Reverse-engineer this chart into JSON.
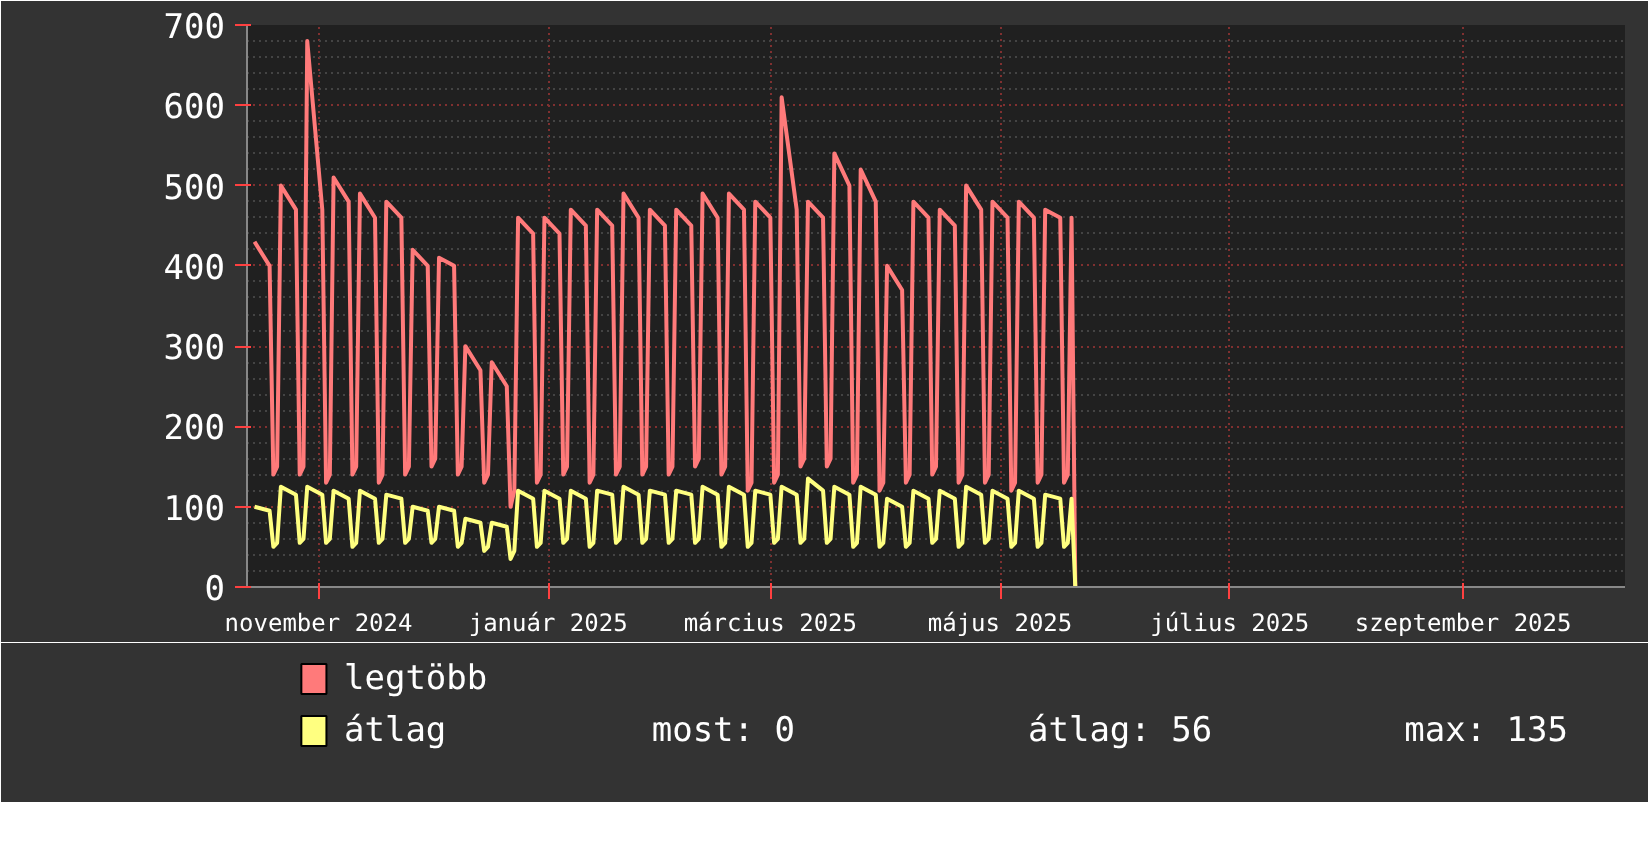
{
  "chart_data": {
    "type": "line",
    "x": [
      "2024-10-15",
      "2024-10-19",
      "2024-10-20",
      "2024-10-21",
      "2024-10-22",
      "2024-10-26",
      "2024-10-27",
      "2024-10-28",
      "2024-10-29",
      "2024-11-02",
      "2024-11-03",
      "2024-11-04",
      "2024-11-05",
      "2024-11-09",
      "2024-11-10",
      "2024-11-11",
      "2024-11-12",
      "2024-11-16",
      "2024-11-17",
      "2024-11-18",
      "2024-11-19",
      "2024-11-23",
      "2024-11-24",
      "2024-11-25",
      "2024-11-26",
      "2024-11-30",
      "2024-12-01",
      "2024-12-02",
      "2024-12-03",
      "2024-12-07",
      "2024-12-08",
      "2024-12-09",
      "2024-12-10",
      "2024-12-14",
      "2024-12-15",
      "2024-12-16",
      "2024-12-17",
      "2024-12-21",
      "2024-12-22",
      "2024-12-23",
      "2024-12-24",
      "2024-12-28",
      "2024-12-29",
      "2024-12-30",
      "2024-12-31",
      "2025-01-04",
      "2025-01-05",
      "2025-01-06",
      "2025-01-07",
      "2025-01-11",
      "2025-01-12",
      "2025-01-13",
      "2025-01-14",
      "2025-01-18",
      "2025-01-19",
      "2025-01-20",
      "2025-01-21",
      "2025-01-25",
      "2025-01-26",
      "2025-01-27",
      "2025-01-28",
      "2025-02-01",
      "2025-02-02",
      "2025-02-03",
      "2025-02-04",
      "2025-02-08",
      "2025-02-09",
      "2025-02-10",
      "2025-02-11",
      "2025-02-15",
      "2025-02-16",
      "2025-02-17",
      "2025-02-18",
      "2025-02-22",
      "2025-02-23",
      "2025-02-24",
      "2025-02-25",
      "2025-03-01",
      "2025-03-02",
      "2025-03-03",
      "2025-03-04",
      "2025-03-08",
      "2025-03-09",
      "2025-03-10",
      "2025-03-11",
      "2025-03-15",
      "2025-03-16",
      "2025-03-17",
      "2025-03-18",
      "2025-03-22",
      "2025-03-23",
      "2025-03-24",
      "2025-03-25",
      "2025-03-29",
      "2025-03-30",
      "2025-03-31",
      "2025-04-01",
      "2025-04-05",
      "2025-04-06",
      "2025-04-07",
      "2025-04-08",
      "2025-04-12",
      "2025-04-13",
      "2025-04-14",
      "2025-04-15",
      "2025-04-19",
      "2025-04-20",
      "2025-04-21",
      "2025-04-22",
      "2025-04-26",
      "2025-04-27",
      "2025-04-28",
      "2025-04-29",
      "2025-05-03",
      "2025-05-04",
      "2025-05-05",
      "2025-05-06",
      "2025-05-10",
      "2025-05-11",
      "2025-05-12",
      "2025-05-13",
      "2025-05-17",
      "2025-05-18",
      "2025-05-19",
      "2025-05-20",
      "2025-05-21"
    ],
    "series": [
      {
        "name": "legtöbb",
        "color": "#ff7a7a",
        "values": [
          430,
          400,
          140,
          150,
          500,
          470,
          140,
          150,
          680,
          470,
          130,
          140,
          510,
          480,
          140,
          150,
          490,
          460,
          130,
          140,
          480,
          460,
          140,
          150,
          420,
          400,
          150,
          160,
          410,
          400,
          140,
          150,
          300,
          270,
          130,
          140,
          280,
          250,
          100,
          120,
          460,
          440,
          130,
          140,
          460,
          440,
          140,
          150,
          470,
          450,
          130,
          140,
          470,
          450,
          140,
          150,
          490,
          460,
          140,
          150,
          470,
          450,
          140,
          150,
          470,
          450,
          150,
          160,
          490,
          460,
          140,
          150,
          490,
          470,
          120,
          130,
          480,
          460,
          130,
          140,
          610,
          470,
          150,
          160,
          480,
          460,
          150,
          160,
          540,
          500,
          130,
          140,
          520,
          480,
          120,
          130,
          400,
          370,
          130,
          140,
          480,
          460,
          140,
          150,
          470,
          450,
          130,
          140,
          500,
          470,
          130,
          140,
          480,
          460,
          120,
          130,
          480,
          460,
          130,
          140,
          470,
          460,
          130,
          140,
          460,
          0
        ]
      },
      {
        "name": "átlag",
        "color": "#ffff80",
        "values": [
          100,
          95,
          50,
          55,
          125,
          115,
          55,
          60,
          125,
          115,
          55,
          60,
          120,
          110,
          50,
          55,
          120,
          110,
          55,
          60,
          115,
          110,
          55,
          60,
          100,
          95,
          55,
          60,
          100,
          95,
          50,
          55,
          85,
          80,
          45,
          50,
          80,
          75,
          35,
          45,
          120,
          110,
          50,
          55,
          120,
          110,
          55,
          60,
          120,
          110,
          50,
          55,
          120,
          115,
          55,
          60,
          125,
          115,
          55,
          60,
          120,
          115,
          55,
          60,
          120,
          115,
          55,
          60,
          125,
          115,
          50,
          55,
          125,
          115,
          50,
          55,
          120,
          115,
          55,
          60,
          125,
          115,
          55,
          60,
          135,
          120,
          55,
          60,
          125,
          115,
          50,
          55,
          125,
          115,
          50,
          55,
          110,
          100,
          50,
          55,
          120,
          110,
          55,
          60,
          120,
          110,
          50,
          55,
          125,
          115,
          55,
          60,
          120,
          110,
          50,
          55,
          120,
          110,
          50,
          55,
          115,
          110,
          50,
          55,
          110,
          0
        ]
      }
    ],
    "xlim": [
      "2024-10-13",
      "2025-10-14"
    ],
    "xticks": [
      {
        "value": "2024-11-01",
        "label": "november 2024"
      },
      {
        "value": "2025-01-01",
        "label": "január 2025"
      },
      {
        "value": "2025-03-01",
        "label": "március 2025"
      },
      {
        "value": "2025-05-01",
        "label": "május 2025"
      },
      {
        "value": "2025-07-01",
        "label": "július 2025"
      },
      {
        "value": "2025-09-01",
        "label": "szeptember 2025"
      }
    ],
    "ylim": [
      0,
      700
    ],
    "yticks": [
      0,
      100,
      200,
      300,
      400,
      500,
      600,
      700
    ],
    "grid": true,
    "legend": "bottom left",
    "marker": "none",
    "line_style": "solid",
    "annotations": [
      "most: 0",
      "átlag: 56",
      "max: 135"
    ]
  }
}
